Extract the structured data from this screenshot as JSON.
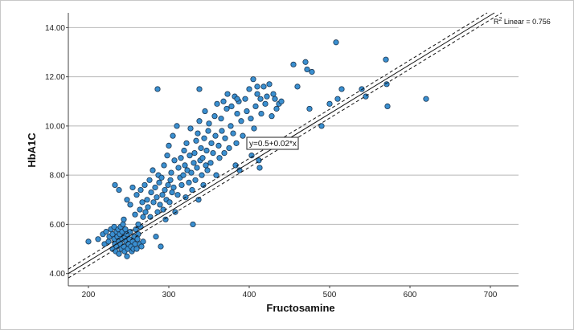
{
  "chart_data": {
    "type": "scatter",
    "xlabel": "Fructosamine",
    "ylabel": "HbA1C",
    "xlim": [
      175,
      735
    ],
    "ylim": [
      3.5,
      14.6
    ],
    "x_ticks": [
      200,
      300,
      400,
      500,
      600,
      700
    ],
    "y_ticks": [
      4.0,
      6.0,
      8.0,
      10.0,
      12.0,
      14.0
    ],
    "y_tick_labels": [
      "4.00",
      "6.00",
      "8.00",
      "10.00",
      "12.00",
      "14.00"
    ],
    "gridlines": "horizontal",
    "point_color": "#3a8fd0",
    "point_stroke": "#1a3550",
    "fit": {
      "equation_label": "y=0.5+0.02*x",
      "r2_label_prefix": "R",
      "r2_label_sup": "2",
      "r2_label_suffix": " Linear = 0.756",
      "intercept": 0.5,
      "slope": 0.02,
      "ci_halfwidth": 0.18
    },
    "points": [
      [
        200,
        5.3
      ],
      [
        212,
        5.4
      ],
      [
        218,
        5.6
      ],
      [
        220,
        5.2
      ],
      [
        222,
        5.7
      ],
      [
        225,
        5.3
      ],
      [
        226,
        5.5
      ],
      [
        228,
        5.8
      ],
      [
        230,
        5.6
      ],
      [
        230,
        5.0
      ],
      [
        232,
        5.9
      ],
      [
        232,
        5.4
      ],
      [
        233,
        5.2
      ],
      [
        234,
        4.9
      ],
      [
        235,
        5.7
      ],
      [
        235,
        5.1
      ],
      [
        236,
        5.5
      ],
      [
        237,
        5.8
      ],
      [
        238,
        5.3
      ],
      [
        238,
        4.8
      ],
      [
        239,
        5.6
      ],
      [
        240,
        5.9
      ],
      [
        240,
        5.2
      ],
      [
        241,
        5.0
      ],
      [
        242,
        5.4
      ],
      [
        242,
        5.7
      ],
      [
        243,
        6.0
      ],
      [
        244,
        5.1
      ],
      [
        245,
        5.5
      ],
      [
        245,
        4.9
      ],
      [
        246,
        5.8
      ],
      [
        247,
        5.3
      ],
      [
        248,
        4.7
      ],
      [
        248,
        5.6
      ],
      [
        249,
        5.0
      ],
      [
        250,
        5.2
      ],
      [
        251,
        5.4
      ],
      [
        252,
        5.7
      ],
      [
        253,
        5.1
      ],
      [
        254,
        4.9
      ],
      [
        255,
        5.3
      ],
      [
        256,
        5.0
      ],
      [
        257,
        5.5
      ],
      [
        258,
        5.2
      ],
      [
        259,
        5.8
      ],
      [
        260,
        5.0
      ],
      [
        261,
        5.4
      ],
      [
        262,
        5.6
      ],
      [
        264,
        5.2
      ],
      [
        265,
        5.9
      ],
      [
        266,
        5.1
      ],
      [
        268,
        5.3
      ],
      [
        233,
        7.6
      ],
      [
        238,
        7.4
      ],
      [
        244,
        6.2
      ],
      [
        248,
        7.0
      ],
      [
        252,
        6.8
      ],
      [
        255,
        7.5
      ],
      [
        258,
        6.4
      ],
      [
        260,
        7.2
      ],
      [
        262,
        6.0
      ],
      [
        264,
        6.6
      ],
      [
        265,
        7.4
      ],
      [
        267,
        6.9
      ],
      [
        268,
        6.3
      ],
      [
        270,
        7.6
      ],
      [
        271,
        6.5
      ],
      [
        273,
        7.0
      ],
      [
        274,
        6.7
      ],
      [
        276,
        7.8
      ],
      [
        277,
        6.3
      ],
      [
        278,
        7.3
      ],
      [
        280,
        8.2
      ],
      [
        281,
        6.9
      ],
      [
        283,
        7.5
      ],
      [
        284,
        5.5
      ],
      [
        285,
        7.1
      ],
      [
        286,
        6.5
      ],
      [
        287,
        8.0
      ],
      [
        288,
        7.7
      ],
      [
        289,
        6.8
      ],
      [
        290,
        5.1
      ],
      [
        291,
        7.9
      ],
      [
        292,
        7.2
      ],
      [
        293,
        6.6
      ],
      [
        294,
        8.4
      ],
      [
        295,
        7.4
      ],
      [
        296,
        6.2
      ],
      [
        297,
        7.0
      ],
      [
        298,
        8.8
      ],
      [
        299,
        7.6
      ],
      [
        300,
        9.2
      ],
      [
        301,
        6.9
      ],
      [
        302,
        7.8
      ],
      [
        303,
        8.1
      ],
      [
        304,
        7.3
      ],
      [
        305,
        9.6
      ],
      [
        306,
        7.5
      ],
      [
        307,
        8.6
      ],
      [
        308,
        6.5
      ],
      [
        310,
        10.0
      ],
      [
        311,
        7.2
      ],
      [
        312,
        8.3
      ],
      [
        314,
        7.9
      ],
      [
        315,
        8.7
      ],
      [
        316,
        7.6
      ],
      [
        318,
        8.0
      ],
      [
        319,
        9.0
      ],
      [
        320,
        8.4
      ],
      [
        321,
        7.1
      ],
      [
        322,
        9.3
      ],
      [
        323,
        8.2
      ],
      [
        325,
        7.7
      ],
      [
        326,
        8.8
      ],
      [
        327,
        9.9
      ],
      [
        328,
        8.1
      ],
      [
        329,
        7.4
      ],
      [
        330,
        6.0
      ],
      [
        331,
        8.5
      ],
      [
        332,
        8.9
      ],
      [
        333,
        7.8
      ],
      [
        334,
        9.4
      ],
      [
        335,
        8.3
      ],
      [
        336,
        9.7
      ],
      [
        337,
        7.0
      ],
      [
        338,
        10.2
      ],
      [
        339,
        8.6
      ],
      [
        340,
        9.1
      ],
      [
        341,
        8.0
      ],
      [
        342,
        8.7
      ],
      [
        343,
        7.6
      ],
      [
        344,
        9.5
      ],
      [
        345,
        10.6
      ],
      [
        346,
        8.4
      ],
      [
        347,
        9.0
      ],
      [
        348,
        8.2
      ],
      [
        349,
        9.8
      ],
      [
        350,
        10.1
      ],
      [
        352,
        8.5
      ],
      [
        353,
        9.3
      ],
      [
        355,
        8.9
      ],
      [
        357,
        10.4
      ],
      [
        358,
        9.6
      ],
      [
        359,
        8.0
      ],
      [
        360,
        10.9
      ],
      [
        362,
        9.2
      ],
      [
        363,
        8.7
      ],
      [
        365,
        10.3
      ],
      [
        366,
        9.8
      ],
      [
        368,
        11.0
      ],
      [
        369,
        8.9
      ],
      [
        370,
        9.5
      ],
      [
        372,
        10.7
      ],
      [
        373,
        11.3
      ],
      [
        375,
        9.1
      ],
      [
        377,
        10.0
      ],
      [
        378,
        10.8
      ],
      [
        380,
        9.7
      ],
      [
        382,
        11.2
      ],
      [
        383,
        8.4
      ],
      [
        384,
        9.3
      ],
      [
        385,
        10.5
      ],
      [
        387,
        11.0
      ],
      [
        388,
        8.2
      ],
      [
        390,
        10.2
      ],
      [
        392,
        9.6
      ],
      [
        395,
        11.1
      ],
      [
        397,
        10.6
      ],
      [
        400,
        11.5
      ],
      [
        402,
        10.3
      ],
      [
        403,
        8.8
      ],
      [
        405,
        11.9
      ],
      [
        406,
        9.9
      ],
      [
        408,
        10.8
      ],
      [
        410,
        11.3
      ],
      [
        412,
        8.6
      ],
      [
        413,
        8.3
      ],
      [
        414,
        11.1
      ],
      [
        415,
        10.5
      ],
      [
        418,
        11.6
      ],
      [
        420,
        10.9
      ],
      [
        422,
        11.2
      ],
      [
        425,
        11.7
      ],
      [
        428,
        10.4
      ],
      [
        430,
        11.3
      ],
      [
        432,
        11.1
      ],
      [
        434,
        10.7
      ],
      [
        437,
        10.9
      ],
      [
        440,
        11.0
      ],
      [
        455,
        12.5
      ],
      [
        460,
        11.6
      ],
      [
        470,
        12.6
      ],
      [
        472,
        12.3
      ],
      [
        475,
        10.7
      ],
      [
        478,
        12.2
      ],
      [
        490,
        10.0
      ],
      [
        500,
        10.9
      ],
      [
        508,
        13.4
      ],
      [
        510,
        11.1
      ],
      [
        515,
        11.5
      ],
      [
        540,
        11.5
      ],
      [
        545,
        11.2
      ],
      [
        570,
        12.7
      ],
      [
        571,
        11.7
      ],
      [
        572,
        10.8
      ],
      [
        620,
        11.1
      ],
      [
        286,
        11.5
      ],
      [
        338,
        11.5
      ],
      [
        410,
        11.6
      ],
      [
        385,
        11.1
      ]
    ]
  }
}
